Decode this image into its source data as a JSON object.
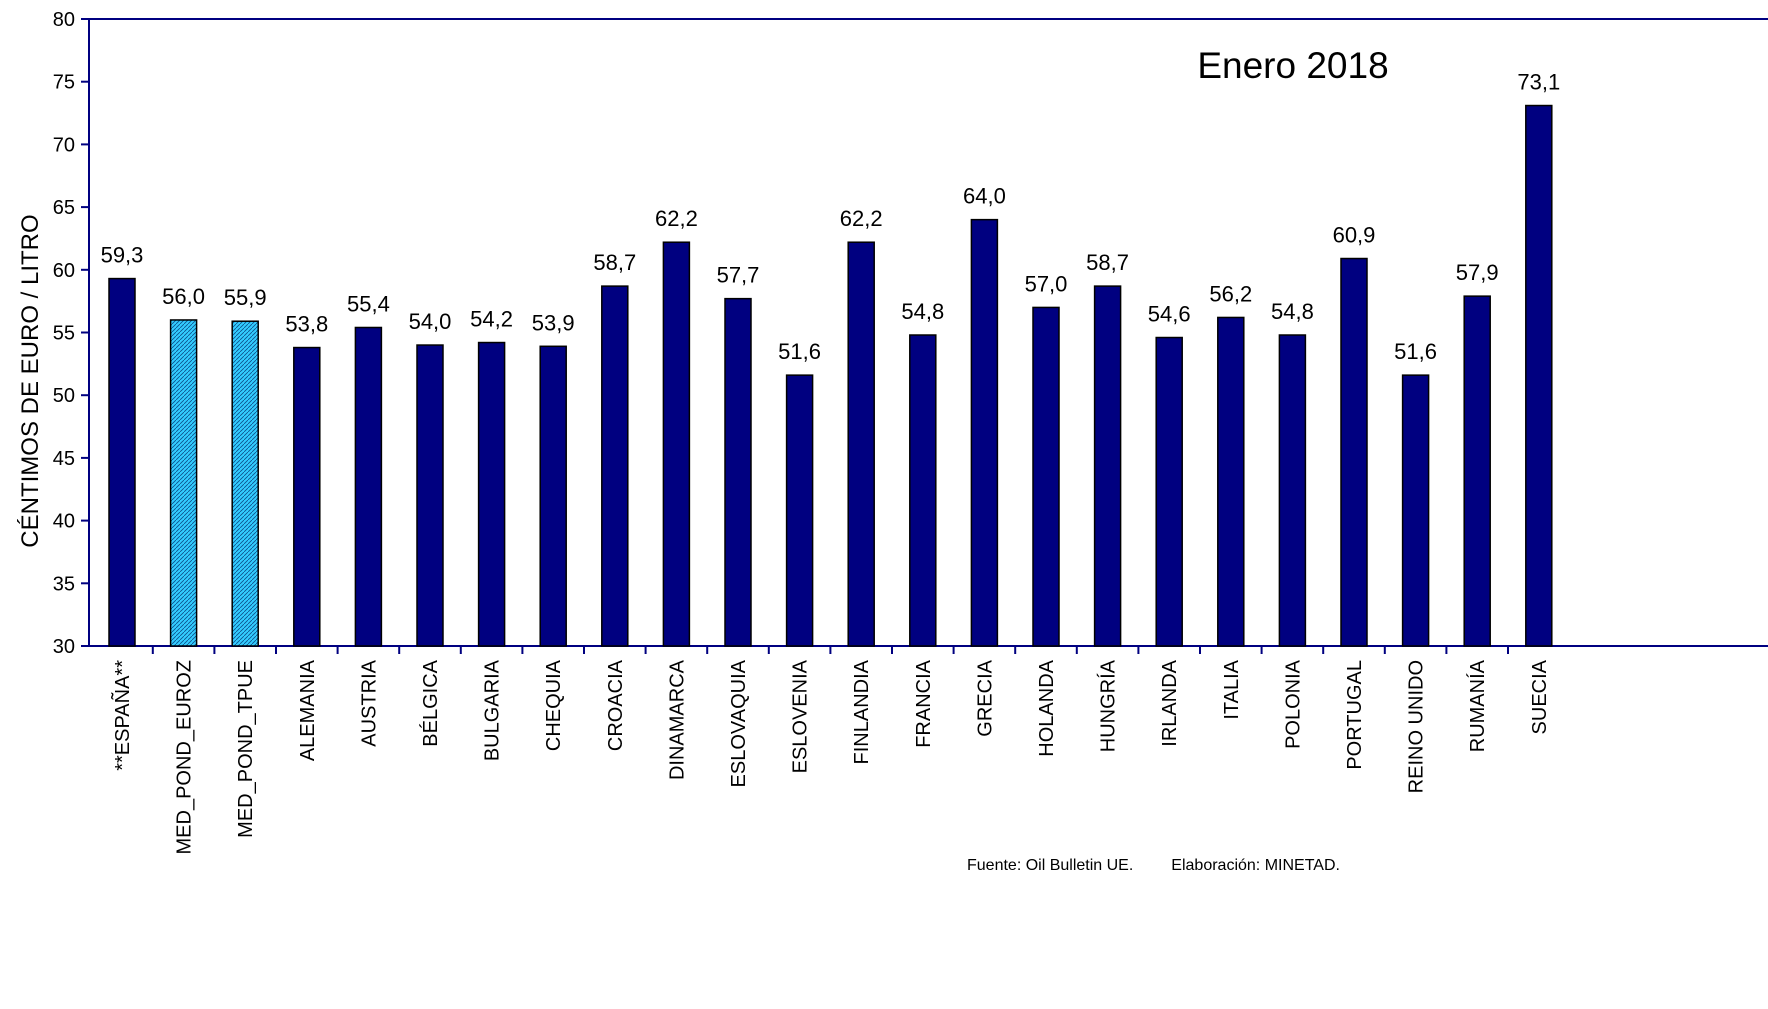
{
  "chart_data": {
    "type": "bar",
    "title": "Enero 2018",
    "ylabel": "CÉNTIMOS DE EURO / LITRO",
    "xlabel": "",
    "ylim": [
      30,
      80
    ],
    "yticks": [
      30,
      35,
      40,
      45,
      50,
      55,
      60,
      65,
      70,
      75,
      80
    ],
    "grid": false,
    "categories": [
      "**ESPAÑA**",
      "MED_POND_EUROZ",
      "MED_POND_TPUE",
      "ALEMANIA",
      "AUSTRIA",
      "BÉLGICA",
      "BULGARIA",
      "CHEQUIA",
      "CROACIA",
      "DINAMARCA",
      "ESLOVAQUIA",
      "ESLOVENIA",
      "FINLANDIA",
      "FRANCIA",
      "GRECIA",
      "HOLANDA",
      "HUNGRÍA",
      "IRLANDA",
      "ITALIA",
      "POLONIA",
      "PORTUGAL",
      "REINO UNIDO",
      "RUMANÍA",
      "SUECIA"
    ],
    "values": [
      59.3,
      56.0,
      55.9,
      53.8,
      55.4,
      54.0,
      54.2,
      53.9,
      58.7,
      62.2,
      57.7,
      51.6,
      62.2,
      54.8,
      64.0,
      57.0,
      58.7,
      54.6,
      56.2,
      54.8,
      60.9,
      51.6,
      57.9,
      73.1
    ],
    "value_labels": [
      "59,3",
      "56,0",
      "55,9",
      "53,8",
      "55,4",
      "54,0",
      "54,2",
      "53,9",
      "58,7",
      "62,2",
      "57,7",
      "51,6",
      "62,2",
      "54,8",
      "64,0",
      "57,0",
      "58,7",
      "54,6",
      "56,2",
      "54,8",
      "60,9",
      "51,6",
      "57,9",
      "73,1"
    ],
    "highlighted": [
      "MED_POND_EUROZ",
      "MED_POND_TPUE"
    ],
    "colors": {
      "bar": "#000080",
      "highlight": "#33CCFF",
      "axis": "#000080"
    }
  },
  "footer": {
    "source": "Fuente: Oil Bulletin UE.",
    "elaboration": "Elaboración: MINETAD."
  }
}
